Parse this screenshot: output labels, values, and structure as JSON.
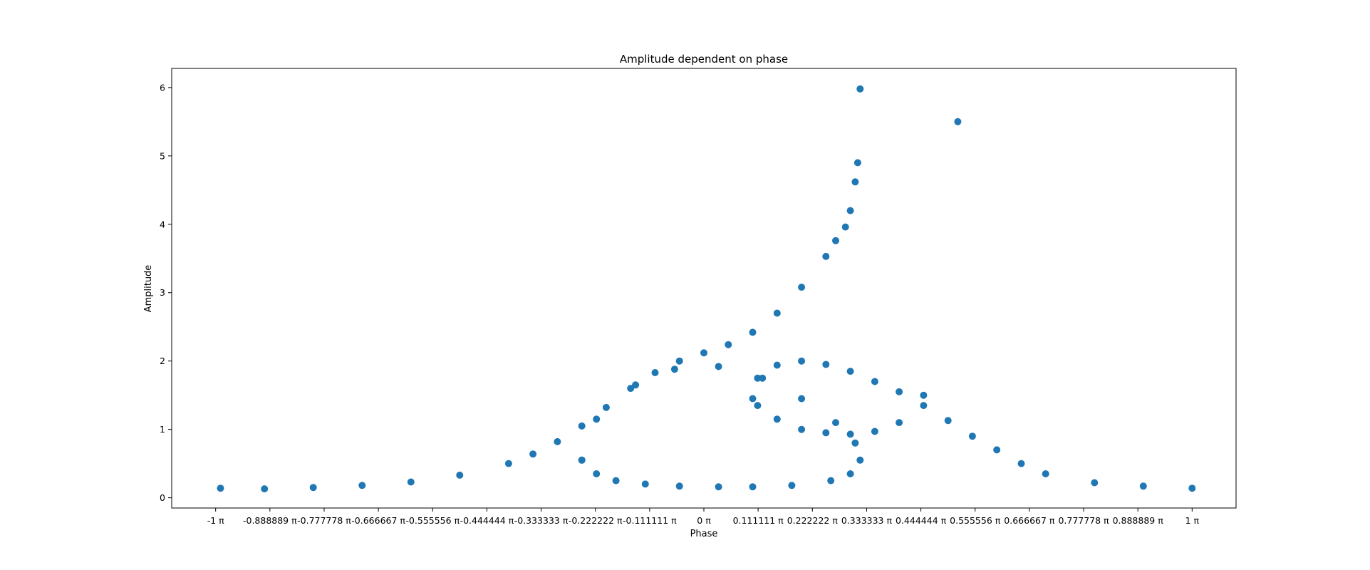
{
  "chart_data": {
    "type": "scatter",
    "title": "Amplitude dependent on phase",
    "xlabel": "Phase",
    "ylabel": "Amplitude",
    "xlim": [
      -1.09,
      1.09
    ],
    "ylim": [
      -0.15,
      6.28
    ],
    "x_unit": "π",
    "grid": false,
    "legend": "none",
    "marker_color": "#1f77b4",
    "x_ticks": [
      -1.0,
      -0.888889,
      -0.777778,
      -0.666667,
      -0.555556,
      -0.444444,
      -0.333333,
      -0.222222,
      -0.111111,
      0.0,
      0.111111,
      0.222222,
      0.333333,
      0.444444,
      0.555556,
      0.666667,
      0.777778,
      0.888889,
      1.0
    ],
    "x_tick_labels": [
      "-1 π",
      "-0.888889 π",
      "-0.777778 π",
      "-0.666667 π",
      "-0.555556 π",
      "-0.444444 π",
      "-0.333333 π",
      "-0.222222 π",
      "-0.111111 π",
      "0 π",
      "0.111111 π",
      "0.222222 π",
      "0.333333 π",
      "0.444444 π",
      "0.555556 π",
      "0.666667 π",
      "0.777778 π",
      "0.888889 π",
      "1 π"
    ],
    "y_ticks": [
      0,
      1,
      2,
      3,
      4,
      5,
      6
    ],
    "y_tick_labels": [
      "0",
      "1",
      "2",
      "3",
      "4",
      "5",
      "6"
    ],
    "series": [
      {
        "x": [
          -0.99,
          -0.9,
          -0.8,
          -0.7,
          -0.6,
          -0.5,
          -0.4,
          -0.35,
          -0.3,
          -0.25,
          -0.2,
          -0.15,
          -0.1,
          -0.05,
          0.0,
          0.05,
          0.1,
          0.15,
          0.2,
          0.25,
          0.27,
          0.29,
          0.3,
          0.31,
          0.315,
          0.32
        ],
        "y": [
          0.14,
          0.13,
          0.15,
          0.18,
          0.23,
          0.33,
          0.5,
          0.64,
          0.82,
          1.05,
          1.32,
          1.6,
          1.83,
          2.0,
          2.12,
          2.24,
          2.42,
          2.7,
          3.08,
          3.53,
          3.76,
          3.96,
          4.2,
          4.62,
          4.9,
          5.98
        ]
      },
      {
        "x": [
          0.52,
          0.45,
          0.4,
          0.35,
          0.3,
          0.25,
          0.2,
          0.15,
          0.11,
          0.1,
          0.11,
          0.15,
          0.2,
          0.25,
          0.3,
          0.35,
          0.4,
          0.45,
          0.5,
          0.55,
          0.6,
          0.65,
          0.7,
          0.8,
          0.9,
          1.0
        ],
        "y": [
          5.5,
          1.5,
          1.1,
          0.97,
          0.93,
          0.95,
          1.0,
          1.15,
          1.35,
          1.45,
          1.75,
          1.94,
          2.0,
          1.95,
          1.85,
          1.7,
          1.55,
          1.35,
          1.13,
          0.9,
          0.7,
          0.5,
          0.35,
          0.22,
          0.17,
          0.14
        ]
      },
      {
        "x": [
          -0.25,
          -0.22,
          -0.18,
          -0.12,
          -0.05,
          0.03,
          0.1,
          0.18,
          0.26,
          0.3,
          0.32,
          0.31,
          0.27,
          0.2,
          0.12,
          0.03,
          -0.06,
          -0.14,
          -0.22,
          -0.25
        ],
        "y": [
          0.55,
          0.35,
          0.25,
          0.2,
          0.17,
          0.16,
          0.16,
          0.18,
          0.25,
          0.35,
          0.55,
          0.8,
          1.1,
          1.45,
          1.75,
          1.92,
          1.88,
          1.65,
          1.15,
          0.55
        ]
      }
    ]
  }
}
